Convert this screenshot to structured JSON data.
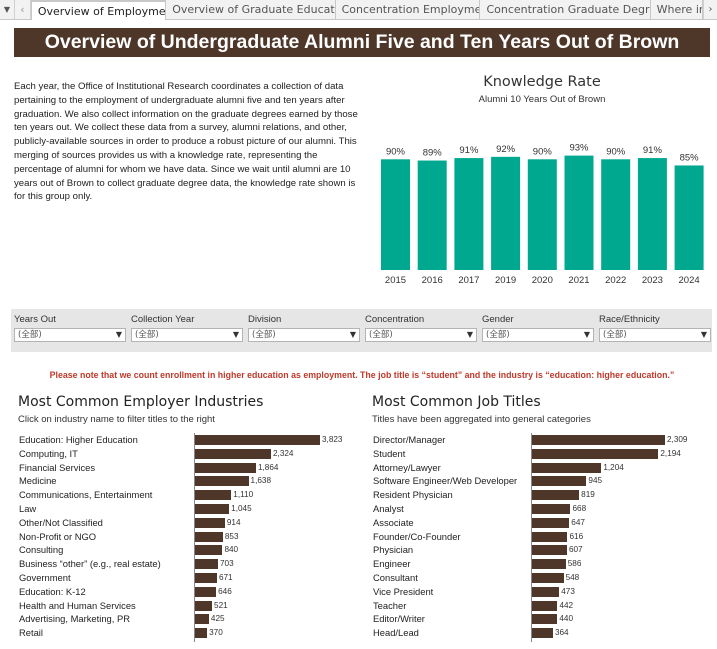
{
  "tabs": {
    "nav_first": "▼",
    "nav_prev": "‹",
    "nav_next": "›",
    "items": [
      {
        "label": "Overview of Employment"
      },
      {
        "label": "Overview of Graduate Education"
      },
      {
        "label": "Concentration Employment"
      },
      {
        "label": "Concentration Graduate Degre..."
      },
      {
        "label": "Where in th"
      }
    ]
  },
  "header": {
    "title": "Overview of Undergraduate Alumni Five and Ten Years Out of Brown"
  },
  "intro": {
    "text": "Each year, the Office of Institutional Research coordinates a collection of data pertaining to the employment of undergraduate alumni five and ten years after graduation. We also collect information on the graduate degrees earned by those ten years out. We collect these data from a survey, alumni relations, and other, publicly-available sources in order to produce a robust picture of our alumni. This merging of sources provides us with a knowledge rate, representing the percentage of alumni for whom we have data. Since we wait until alumni are 10 years out of Brown to collect graduate degree data, the knowledge rate shown is for this group only."
  },
  "chart_data": [
    {
      "type": "bar",
      "title": "Knowledge Rate",
      "subtitle": "Alumni 10 Years Out of Brown",
      "categories": [
        "2015",
        "2016",
        "2017",
        "2019",
        "2020",
        "2021",
        "2022",
        "2023",
        "2024"
      ],
      "values": [
        90,
        89,
        91,
        92,
        90,
        93,
        90,
        91,
        85
      ],
      "value_labels": [
        "90%",
        "89%",
        "91%",
        "92%",
        "90%",
        "93%",
        "90%",
        "91%",
        "85%"
      ],
      "ylim": [
        0,
        100
      ],
      "color": "#00a88f",
      "grid": false
    },
    {
      "type": "bar",
      "orientation": "horizontal",
      "title": "Most Common Employer Industries",
      "subtitle": "Click on industry name to filter titles to the right",
      "color": "#4e3629",
      "xlim": [
        0,
        3823
      ],
      "categories": [
        "Education: Higher Education",
        "Computing, IT",
        "Financial Services",
        "Medicine",
        "Communications, Entertainment",
        "Law",
        "Other/Not Classified",
        "Non-Profit or NGO",
        "Consulting",
        "Business “other” (e.g., real estate)",
        "Government",
        "Education: K-12",
        "Health and Human Services",
        "Advertising, Marketing, PR",
        "Retail"
      ],
      "values": [
        3823,
        2324,
        1864,
        1638,
        1110,
        1045,
        914,
        853,
        840,
        703,
        671,
        646,
        521,
        425,
        370
      ],
      "value_labels": [
        "3,823",
        "2,324",
        "1,864",
        "1,638",
        "1,110",
        "1,045",
        "914",
        "853",
        "840",
        "703",
        "671",
        "646",
        "521",
        "425",
        "370"
      ]
    },
    {
      "type": "bar",
      "orientation": "horizontal",
      "title": "Most Common Job Titles",
      "subtitle": "Titles have been aggregated into general categories",
      "color": "#4e3629",
      "xlim": [
        0,
        2309
      ],
      "categories": [
        "Director/Manager",
        "Student",
        "Attorney/Lawyer",
        "Software Engineer/Web Developer",
        "Resident Physician",
        "Analyst",
        "Associate",
        "Founder/Co-Founder",
        "Physician",
        "Engineer",
        "Consultant",
        "Vice President",
        "Teacher",
        "Editor/Writer",
        "Head/Lead"
      ],
      "values": [
        2309,
        2194,
        1204,
        945,
        819,
        668,
        647,
        616,
        607,
        586,
        548,
        473,
        442,
        440,
        364
      ],
      "value_labels": [
        "2,309",
        "2,194",
        "1,204",
        "945",
        "819",
        "668",
        "647",
        "616",
        "607",
        "586",
        "548",
        "473",
        "442",
        "440",
        "364"
      ]
    }
  ],
  "filters": [
    {
      "label": "Years Out",
      "value": "(全部)"
    },
    {
      "label": "Collection Year",
      "value": "(全部)"
    },
    {
      "label": "Division",
      "value": "(全部)"
    },
    {
      "label": "Concentration",
      "value": "(全部)"
    },
    {
      "label": "Gender",
      "value": "(全部)"
    },
    {
      "label": "Race/Ethnicity",
      "value": "(全部)"
    }
  ],
  "filter_arrow": "▼",
  "note": "Please note that we count enrollment in higher education as employment. The job title is “student” and the industry is “education: higher education.”"
}
